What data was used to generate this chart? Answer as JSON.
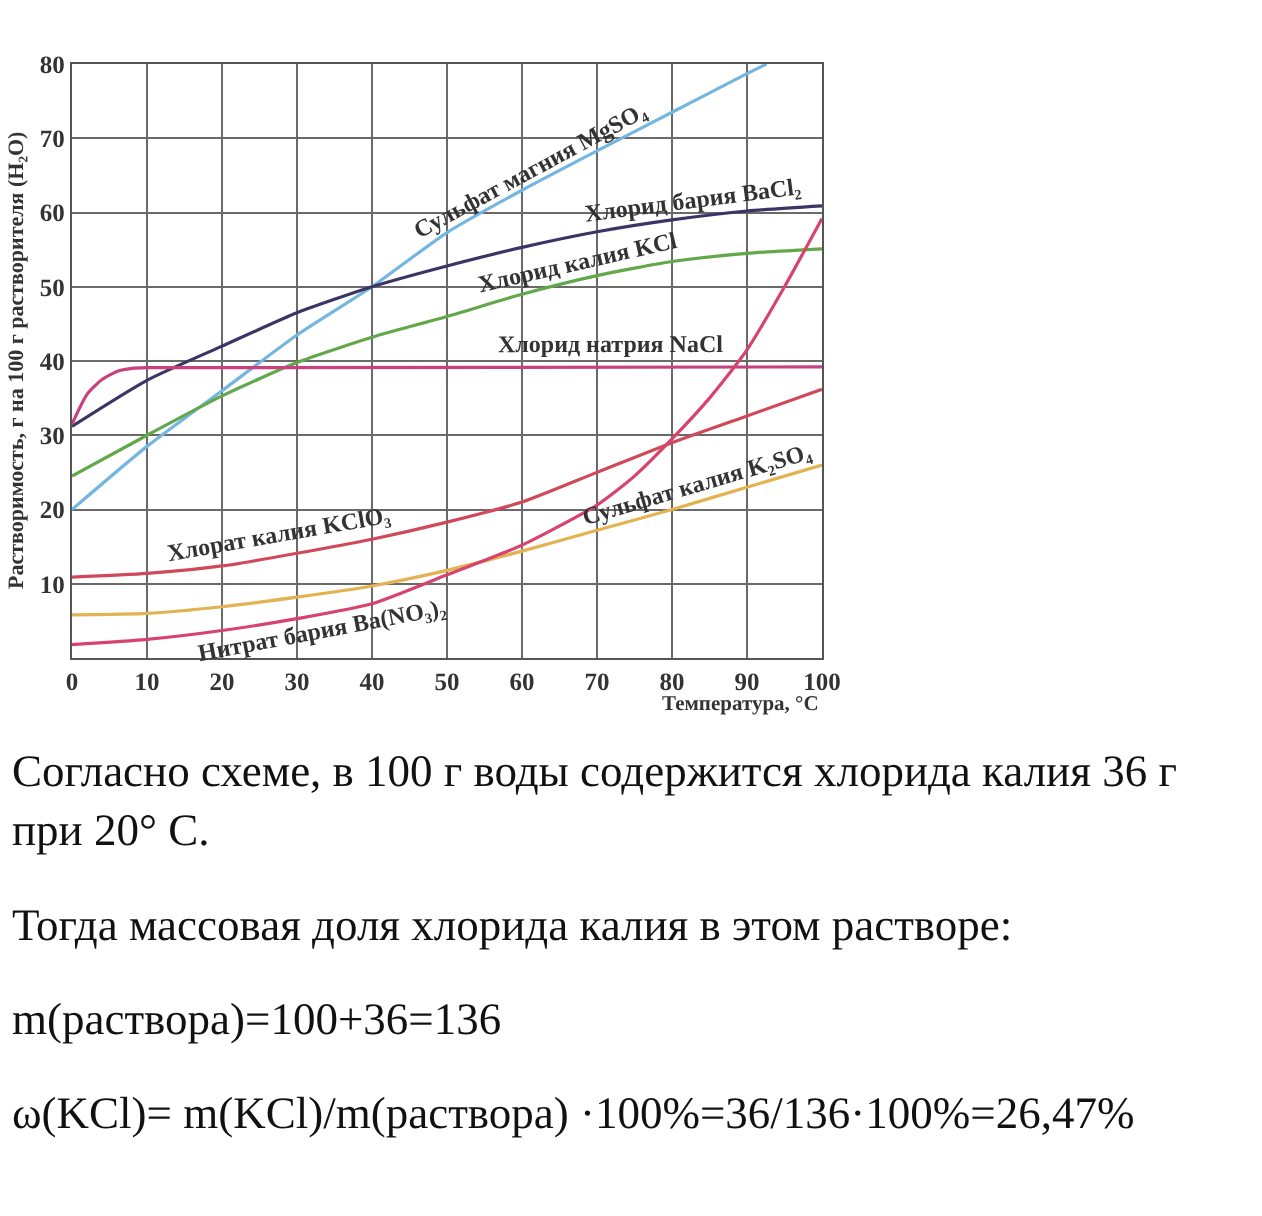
{
  "chart_data": {
    "type": "line",
    "xlabel": "Температура, °C",
    "ylabel": "Растворимость, г на 100 г растворителя (H₂O)",
    "xlim": [
      0,
      100
    ],
    "ylim": [
      0,
      80
    ],
    "xticks": [
      0,
      10,
      20,
      30,
      40,
      50,
      60,
      70,
      80,
      90,
      100
    ],
    "yticks": [
      10,
      20,
      30,
      40,
      50,
      60,
      70,
      80
    ],
    "grid": true,
    "legend": false,
    "line_style": "solid",
    "series": [
      {
        "name": "Сульфат магния MgSO₄",
        "color": "#74b6e0",
        "x": [
          0,
          10,
          20,
          30,
          40,
          50,
          60,
          70,
          80,
          90,
          92.6
        ],
        "values": [
          20,
          28.5,
          36,
          43.5,
          50,
          57.3,
          63,
          68.3,
          73.5,
          78.7,
          80
        ]
      },
      {
        "name": "Хлорид бария BaCl₂",
        "color": "#3b3566",
        "x": [
          0,
          10,
          20,
          30,
          40,
          50,
          60,
          70,
          80,
          90,
          100
        ],
        "values": [
          31.2,
          37.4,
          42,
          46.5,
          50,
          52.8,
          55.3,
          57.4,
          59,
          60.2,
          60.9
        ]
      },
      {
        "name": "Хлорид калия KCl",
        "color": "#62a84a",
        "x": [
          0,
          10,
          20,
          30,
          40,
          50,
          60,
          70,
          80,
          90,
          100
        ],
        "values": [
          24.5,
          30,
          35.3,
          39.8,
          43.2,
          46,
          49,
          51.5,
          53.4,
          54.5,
          55.1
        ]
      },
      {
        "name": "Хлорид натрия NaCl",
        "color": "#c8407e",
        "x": [
          0,
          2,
          4,
          6,
          8,
          10,
          100
        ],
        "values": [
          31.5,
          35.5,
          37.5,
          38.6,
          39,
          39.1,
          39.2
        ]
      },
      {
        "name": "Хлорат калия KClO₃",
        "color": "#d0495a",
        "x": [
          0,
          10,
          20,
          30,
          40,
          50,
          60,
          70,
          80,
          90,
          100
        ],
        "values": [
          10.9,
          11.4,
          12.4,
          14.1,
          16,
          18.3,
          21,
          25,
          29,
          32.6,
          36.2
        ]
      },
      {
        "name": "Сульфат калия K₂SO₄",
        "color": "#e3b251",
        "x": [
          0,
          10,
          20,
          30,
          40,
          50,
          60,
          70,
          80,
          90,
          100
        ],
        "values": [
          5.8,
          6,
          6.9,
          8.2,
          9.7,
          11.8,
          14.4,
          17.2,
          20,
          23,
          26
        ]
      },
      {
        "name": "Нитрат бария Ba(NO₃)₂",
        "color": "#d8436e",
        "x": [
          0,
          10,
          20,
          30,
          40,
          50,
          60,
          70,
          75,
          80,
          85,
          90,
          95,
          100
        ],
        "values": [
          1.8,
          2.5,
          3.7,
          5.3,
          7.3,
          11.2,
          15.2,
          20.6,
          24.5,
          29.5,
          35,
          41.5,
          50,
          59.2
        ]
      }
    ],
    "annotations": [
      "Согласно схеме, в 100 г воды содержится хлорида калия 36 г при 20° С.",
      "Тогда массовая доля хлорида калия в этом растворе:",
      "m(раствора)=100+36=136",
      "ω(KCl)= m(KCl)/m(раствора) ·100%=36/136·100%=26,47%"
    ]
  }
}
